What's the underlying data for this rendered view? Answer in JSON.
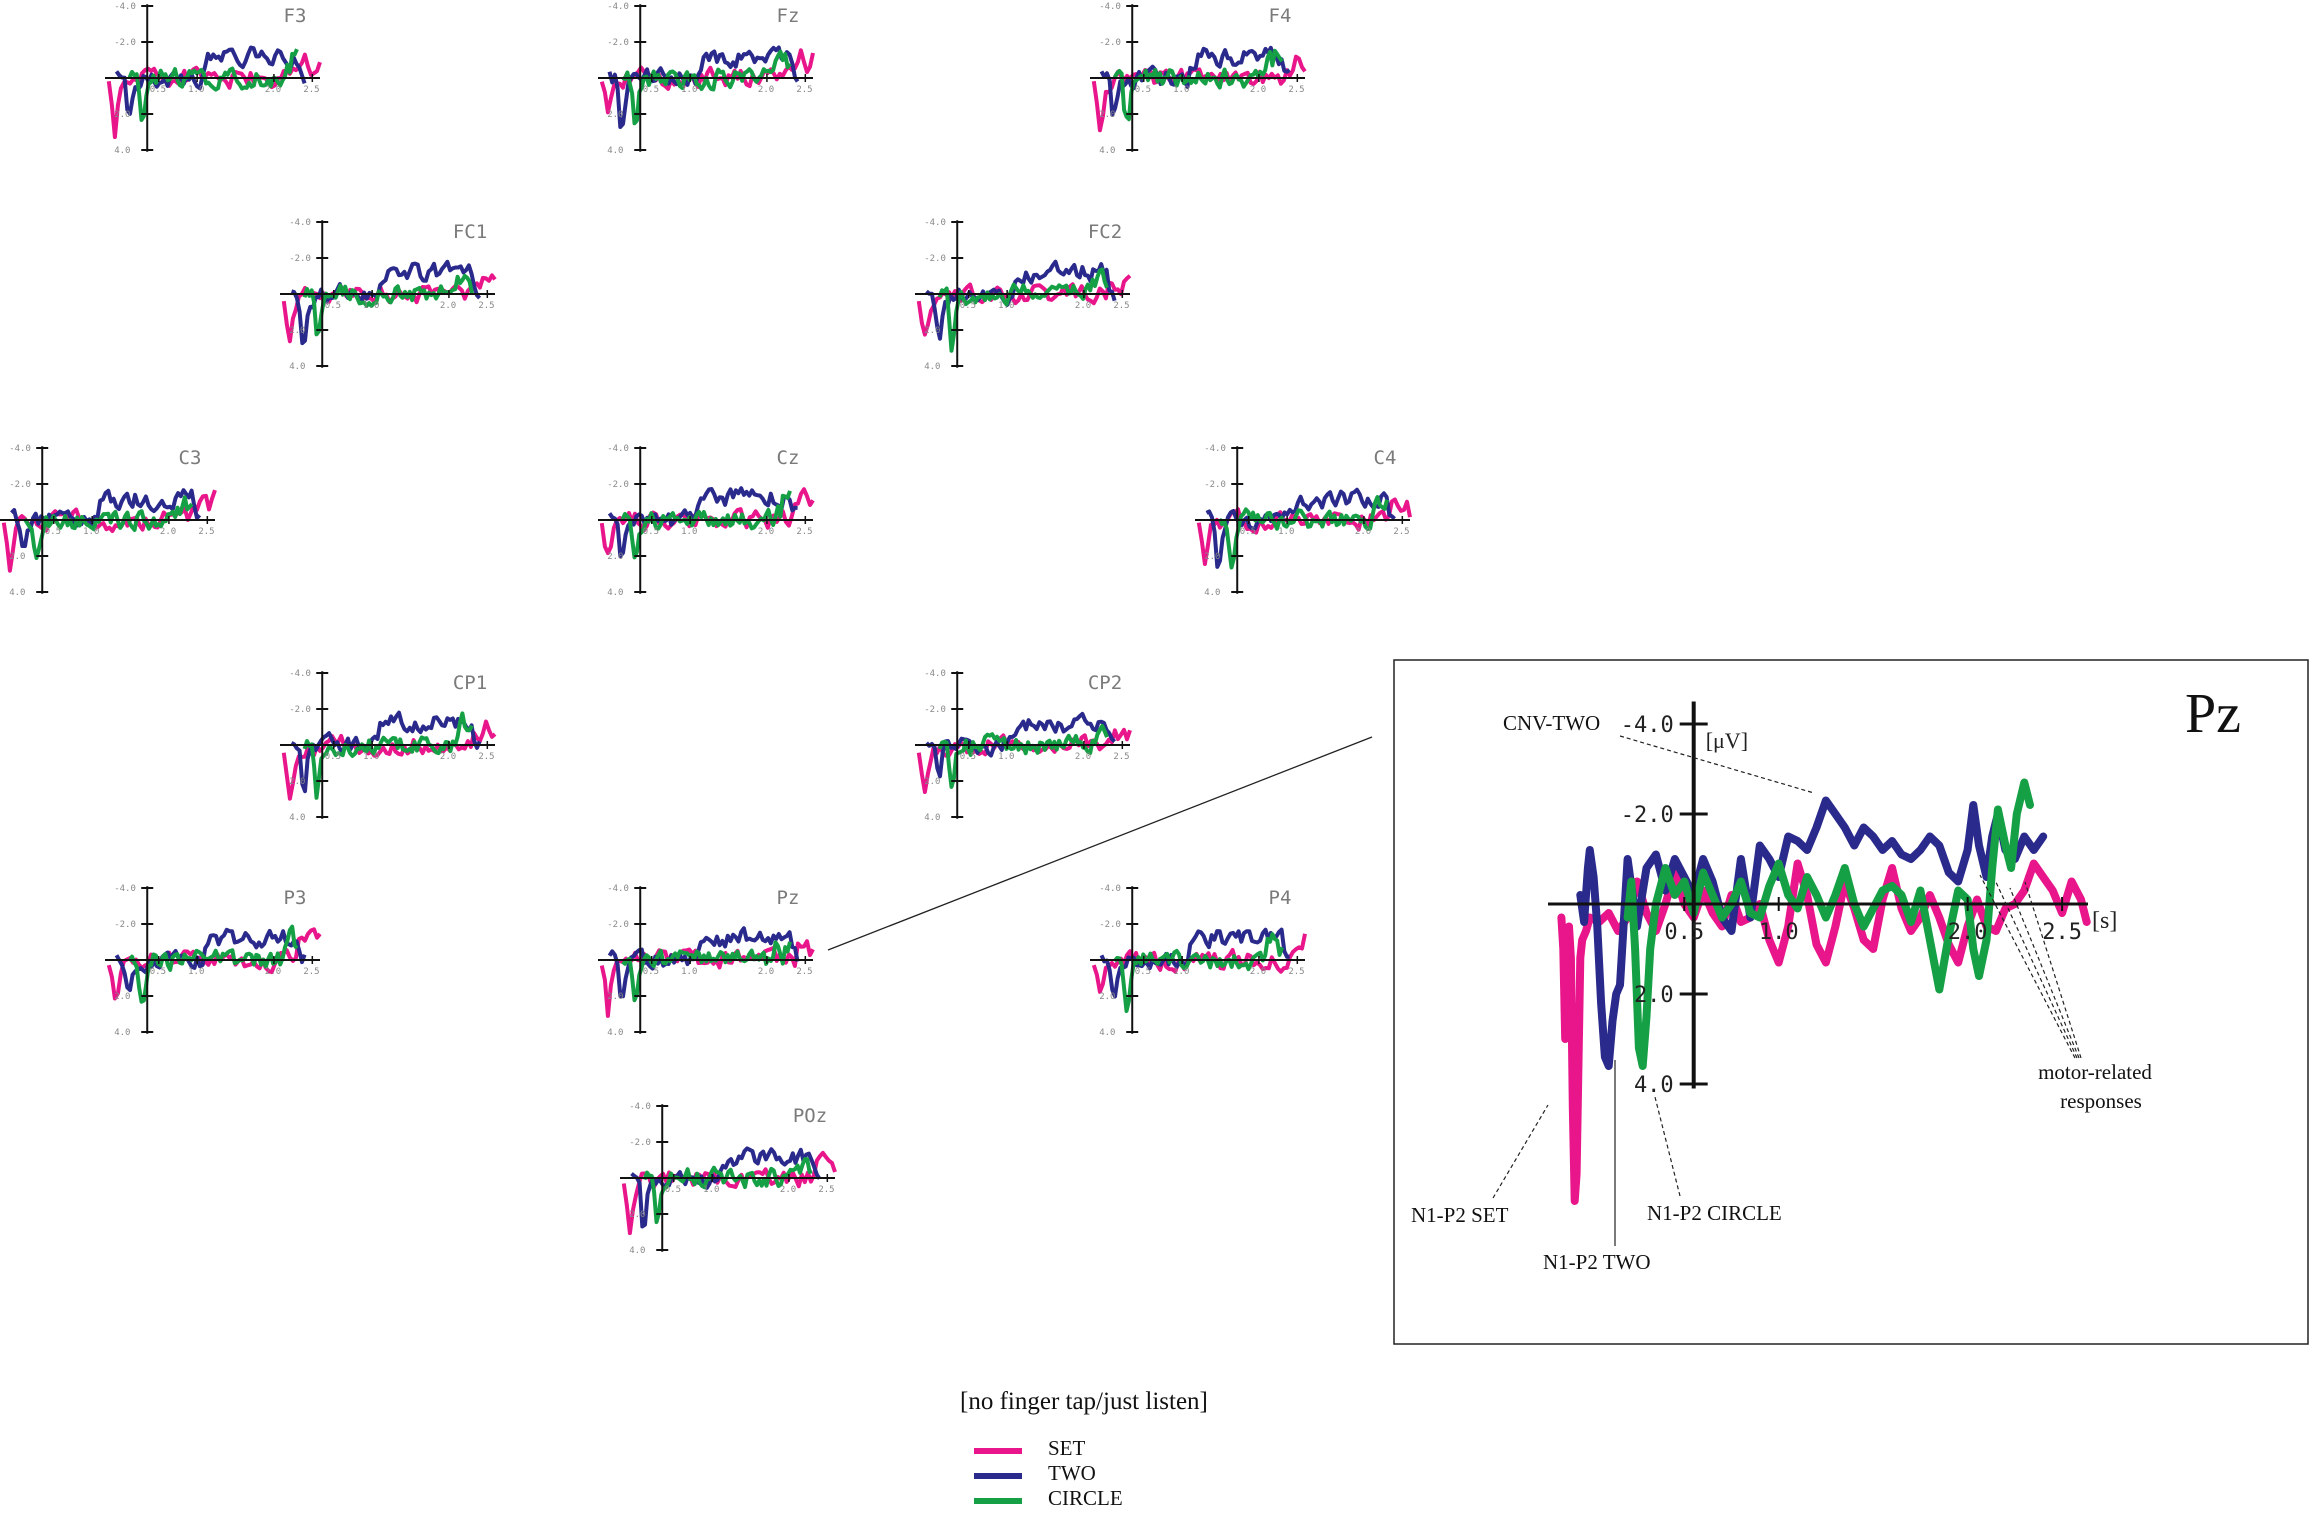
{
  "colors": {
    "SET": "#e8168a",
    "TWO": "#2a2a8c",
    "CIRCLE": "#16a045",
    "axis": "#111111",
    "tick_text": "#888888",
    "label_text": "#7a7a7a"
  },
  "legend": {
    "title": "[no finger tap/just listen]",
    "items": [
      {
        "key": "SET",
        "label": "SET"
      },
      {
        "key": "TWO",
        "label": "TWO"
      },
      {
        "key": "CIRCLE",
        "label": "CIRCLE"
      }
    ]
  },
  "small_plot_ticks": {
    "y_labels": [
      "-4.0",
      "-2.0",
      "2.0",
      "4.0"
    ],
    "x_labels": [
      "0.5",
      "1.0",
      "2.0",
      "2.5"
    ]
  },
  "chart_data": {
    "type": "line",
    "title": "[no finger tap/just listen]",
    "xlabel": "[s]",
    "ylabel": "[μV]",
    "y_inverted": true,
    "xlim": [
      -0.2,
      2.6
    ],
    "ylim": [
      -4.0,
      4.0
    ],
    "x_ticks": [
      0.5,
      1.0,
      2.0,
      2.5
    ],
    "y_ticks": [
      -4.0,
      -2.0,
      2.0,
      4.0
    ],
    "series_names": [
      "SET",
      "TWO",
      "CIRCLE"
    ],
    "electrodes": [
      {
        "name": "F3"
      },
      {
        "name": "Fz"
      },
      {
        "name": "F4"
      },
      {
        "name": "FC1"
      },
      {
        "name": "FC2"
      },
      {
        "name": "C3"
      },
      {
        "name": "Cz"
      },
      {
        "name": "C4"
      },
      {
        "name": "CP1"
      },
      {
        "name": "CP2"
      },
      {
        "name": "P3"
      },
      {
        "name": "Pz"
      },
      {
        "name": "P4"
      },
      {
        "name": "POz"
      }
    ],
    "inset": {
      "electrode": "Pz",
      "y_tick_labels": [
        "-4.0",
        "-2.0",
        "2.0",
        "4.0"
      ],
      "x_tick_labels": [
        "0.5",
        "1.0",
        "2.0",
        "2.5"
      ],
      "xlabel": "[s]",
      "ylabel": "[μV]",
      "series": [
        {
          "name": "SET",
          "points": [
            [
              -0.15,
              0.3
            ],
            [
              -0.14,
              1.0
            ],
            [
              -0.13,
              3.0
            ],
            [
              -0.12,
              1.5
            ],
            [
              -0.11,
              0.5
            ],
            [
              -0.1,
              1.2
            ],
            [
              -0.09,
              4.5
            ],
            [
              -0.08,
              6.6
            ],
            [
              -0.07,
              6.0
            ],
            [
              -0.06,
              3.5
            ],
            [
              -0.05,
              1.2
            ],
            [
              -0.04,
              0.8
            ],
            [
              -0.02,
              0.6
            ],
            [
              0.0,
              0.3
            ],
            [
              0.05,
              0.4
            ],
            [
              0.1,
              0.2
            ],
            [
              0.15,
              0.6
            ],
            [
              0.2,
              0.3
            ],
            [
              0.25,
              -0.5
            ],
            [
              0.3,
              0.2
            ],
            [
              0.35,
              0.6
            ],
            [
              0.4,
              0.0
            ],
            [
              0.45,
              -0.7
            ],
            [
              0.5,
              0.0
            ],
            [
              0.55,
              0.3
            ],
            [
              0.6,
              -0.3
            ],
            [
              0.65,
              0.2
            ],
            [
              0.7,
              0.5
            ],
            [
              0.75,
              -0.2
            ],
            [
              0.8,
              0.4
            ],
            [
              0.85,
              0.3
            ],
            [
              0.9,
              0.0
            ],
            [
              0.95,
              0.8
            ],
            [
              1.0,
              1.3
            ],
            [
              1.05,
              0.5
            ],
            [
              1.1,
              -0.9
            ],
            [
              1.15,
              -0.2
            ],
            [
              1.2,
              0.9
            ],
            [
              1.25,
              1.3
            ],
            [
              1.3,
              0.5
            ],
            [
              1.35,
              -0.5
            ],
            [
              1.4,
              0.1
            ],
            [
              1.45,
              0.8
            ],
            [
              1.5,
              1.0
            ],
            [
              1.55,
              -0.1
            ],
            [
              1.6,
              -0.8
            ],
            [
              1.65,
              0.1
            ],
            [
              1.7,
              0.6
            ],
            [
              1.75,
              0.3
            ],
            [
              1.8,
              -0.2
            ],
            [
              1.85,
              0.3
            ],
            [
              1.9,
              0.9
            ],
            [
              1.95,
              1.3
            ],
            [
              2.0,
              0.5
            ],
            [
              2.05,
              -0.1
            ],
            [
              2.1,
              0.5
            ],
            [
              2.15,
              0.6
            ],
            [
              2.2,
              0.1
            ],
            [
              2.25,
              0.0
            ],
            [
              2.3,
              -0.3
            ],
            [
              2.35,
              -0.9
            ],
            [
              2.4,
              -0.6
            ],
            [
              2.45,
              -0.3
            ],
            [
              2.5,
              0.2
            ],
            [
              2.55,
              -0.5
            ],
            [
              2.6,
              -0.1
            ],
            [
              2.63,
              0.4
            ]
          ]
        },
        {
          "name": "TWO",
          "points": [
            [
              -0.05,
              -0.2
            ],
            [
              -0.03,
              0.4
            ],
            [
              -0.01,
              -0.8
            ],
            [
              0.0,
              -1.2
            ],
            [
              0.02,
              -0.6
            ],
            [
              0.04,
              0.5
            ],
            [
              0.06,
              2.2
            ],
            [
              0.08,
              3.4
            ],
            [
              0.1,
              3.6
            ],
            [
              0.12,
              2.6
            ],
            [
              0.14,
              2.0
            ],
            [
              0.16,
              1.8
            ],
            [
              0.18,
              0.4
            ],
            [
              0.2,
              -1.0
            ],
            [
              0.22,
              -0.4
            ],
            [
              0.25,
              0.5
            ],
            [
              0.3,
              -0.8
            ],
            [
              0.35,
              -1.1
            ],
            [
              0.4,
              -0.3
            ],
            [
              0.45,
              -1.0
            ],
            [
              0.5,
              -0.6
            ],
            [
              0.55,
              -0.2
            ],
            [
              0.6,
              -1.0
            ],
            [
              0.65,
              -0.5
            ],
            [
              0.7,
              0.3
            ],
            [
              0.75,
              0.6
            ],
            [
              0.8,
              -1.0
            ],
            [
              0.85,
              0.3
            ],
            [
              0.9,
              -1.3
            ],
            [
              0.95,
              -1.0
            ],
            [
              1.0,
              -0.6
            ],
            [
              1.05,
              -1.5
            ],
            [
              1.1,
              -1.4
            ],
            [
              1.15,
              -1.2
            ],
            [
              1.2,
              -1.7
            ],
            [
              1.25,
              -2.3
            ],
            [
              1.3,
              -2.0
            ],
            [
              1.35,
              -1.7
            ],
            [
              1.4,
              -1.3
            ],
            [
              1.45,
              -1.7
            ],
            [
              1.5,
              -1.5
            ],
            [
              1.55,
              -1.2
            ],
            [
              1.6,
              -1.4
            ],
            [
              1.65,
              -1.1
            ],
            [
              1.7,
              -1.0
            ],
            [
              1.75,
              -1.2
            ],
            [
              1.8,
              -1.5
            ],
            [
              1.85,
              -1.3
            ],
            [
              1.9,
              -0.7
            ],
            [
              1.95,
              -0.5
            ],
            [
              2.0,
              -1.2
            ],
            [
              2.03,
              -2.2
            ],
            [
              2.06,
              -1.3
            ],
            [
              2.1,
              -0.6
            ],
            [
              2.13,
              -1.5
            ],
            [
              2.16,
              -2.0
            ],
            [
              2.2,
              -1.2
            ],
            [
              2.25,
              -1.0
            ],
            [
              2.3,
              -1.5
            ],
            [
              2.35,
              -1.2
            ],
            [
              2.4,
              -1.5
            ]
          ]
        },
        {
          "name": "CIRCLE",
          "points": [
            [
              0.2,
              0.3
            ],
            [
              0.22,
              -0.5
            ],
            [
              0.24,
              1.0
            ],
            [
              0.26,
              3.2
            ],
            [
              0.28,
              3.6
            ],
            [
              0.3,
              2.5
            ],
            [
              0.32,
              1.0
            ],
            [
              0.35,
              0.0
            ],
            [
              0.4,
              -0.8
            ],
            [
              0.45,
              -0.2
            ],
            [
              0.5,
              -0.5
            ],
            [
              0.55,
              0.2
            ],
            [
              0.6,
              -0.7
            ],
            [
              0.65,
              -0.2
            ],
            [
              0.7,
              0.3
            ],
            [
              0.75,
              0.0
            ],
            [
              0.8,
              -0.5
            ],
            [
              0.85,
              0.2
            ],
            [
              0.9,
              0.3
            ],
            [
              0.95,
              -0.4
            ],
            [
              1.0,
              -0.9
            ],
            [
              1.05,
              -0.2
            ],
            [
              1.1,
              0.1
            ],
            [
              1.15,
              -0.6
            ],
            [
              1.2,
              -0.2
            ],
            [
              1.25,
              0.3
            ],
            [
              1.3,
              -0.2
            ],
            [
              1.35,
              -0.8
            ],
            [
              1.4,
              0.0
            ],
            [
              1.45,
              0.5
            ],
            [
              1.5,
              0.1
            ],
            [
              1.55,
              -0.3
            ],
            [
              1.6,
              -0.4
            ],
            [
              1.65,
              -0.2
            ],
            [
              1.7,
              0.4
            ],
            [
              1.75,
              -0.3
            ],
            [
              1.8,
              0.8
            ],
            [
              1.85,
              1.9
            ],
            [
              1.9,
              0.7
            ],
            [
              1.95,
              -0.3
            ],
            [
              2.0,
              -0.1
            ],
            [
              2.03,
              1.0
            ],
            [
              2.06,
              1.6
            ],
            [
              2.1,
              0.8
            ],
            [
              2.13,
              -0.8
            ],
            [
              2.16,
              -2.1
            ],
            [
              2.2,
              -1.3
            ],
            [
              2.23,
              -0.8
            ],
            [
              2.26,
              -2.0
            ],
            [
              2.3,
              -2.7
            ],
            [
              2.33,
              -2.2
            ]
          ]
        }
      ],
      "annotations": [
        {
          "key": "cnv",
          "text": "CNV-TWO"
        },
        {
          "key": "n1p2_set",
          "text": "N1-P2 SET"
        },
        {
          "key": "n1p2_two",
          "text": "N1-P2 TWO"
        },
        {
          "key": "n1p2_circle",
          "text": "N1-P2 CIRCLE"
        },
        {
          "key": "motor",
          "text": "motor-related\nresponses"
        }
      ]
    }
  }
}
